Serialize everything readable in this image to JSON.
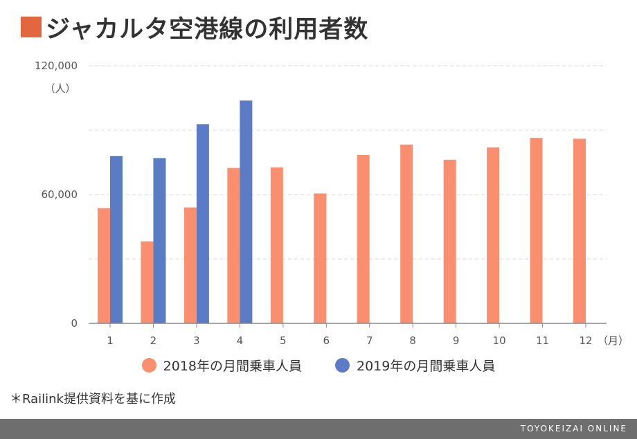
{
  "title": "ジャカルタ空港線の利用者数",
  "colors": {
    "title_square": "#e2673f",
    "series_2018": "#f98f6f",
    "series_2019": "#5b7cc4",
    "grid": "#d9d9d9",
    "axis": "#888888",
    "footer_bg": "#6e6e6e"
  },
  "legend": {
    "item_2018": "2018年の月間乗車人員",
    "item_2019": "2019年の月間乗車人員"
  },
  "note": "＊Railink提供資料を基に作成",
  "footer": "TOYOKEIZAI ONLINE",
  "chart_data": {
    "type": "bar",
    "categories": [
      "1",
      "2",
      "3",
      "4",
      "5",
      "6",
      "7",
      "8",
      "9",
      "10",
      "11",
      "12"
    ],
    "x_unit_label": "（月）",
    "y_unit_label": "（人）",
    "y_tick_labels": [
      "0",
      "60,000",
      "120,000"
    ],
    "ylim": [
      0,
      120000
    ],
    "gridlines": [
      30000,
      60000,
      90000,
      120000
    ],
    "grid": true,
    "legend_position": "bottom",
    "series": [
      {
        "name": "2018年の月間乗車人員",
        "values": [
          53700,
          38200,
          54000,
          72400,
          72700,
          60500,
          78400,
          83300,
          76200,
          82000,
          86400,
          86000
        ]
      },
      {
        "name": "2019年の月間乗車人員",
        "values": [
          78000,
          77000,
          92800,
          103800,
          null,
          null,
          null,
          null,
          null,
          null,
          null,
          null
        ]
      }
    ]
  }
}
